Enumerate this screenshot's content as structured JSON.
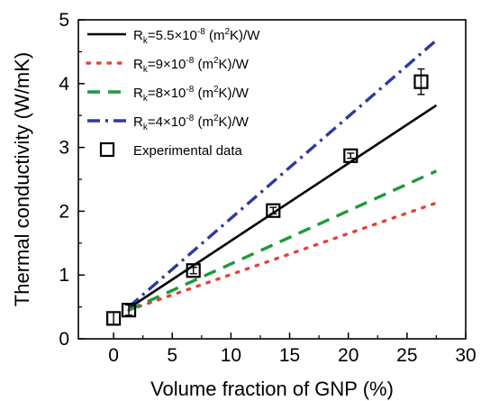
{
  "chart_data": {
    "type": "line",
    "xlabel": "Volume fraction of GNP (%)",
    "ylabel": "Thermal conductivity (W/mK)",
    "xlim": [
      -3,
      30
    ],
    "ylim": [
      0,
      5
    ],
    "x_ticks": [
      0,
      5,
      10,
      15,
      20,
      25,
      30
    ],
    "y_ticks": [
      0,
      1,
      2,
      3,
      4,
      5
    ],
    "grid": false,
    "legend_position": "top-left",
    "series": [
      {
        "name": "Rk=5.5×10-8 (m2K)/W",
        "name_parts": {
          "main": "R",
          "sub": "k",
          "coef": "=5.5×10",
          "exp": "-8",
          "unit_a": " (m",
          "unit_exp": "2",
          "unit_b": "K)/W"
        },
        "style": "solid",
        "color": "#000000",
        "x": [
          1.3,
          27.5
        ],
        "y": [
          0.48,
          3.66
        ]
      },
      {
        "name": "Rk=9×10-8 (m2K)/W",
        "name_parts": {
          "main": "R",
          "sub": "k",
          "coef": "=9×10",
          "exp": "-8",
          "unit_a": " (m",
          "unit_exp": "2",
          "unit_b": "K)/W"
        },
        "style": "dotted",
        "color": "#e8403a",
        "x": [
          1.3,
          27.5
        ],
        "y": [
          0.45,
          2.13
        ]
      },
      {
        "name": "Rk=8×10-8 (m2K)/W",
        "name_parts": {
          "main": "R",
          "sub": "k",
          "coef": "=8×10",
          "exp": "-8",
          "unit_a": " (m",
          "unit_exp": "2",
          "unit_b": "K)/W"
        },
        "style": "dashed",
        "color": "#1c9b3b",
        "x": [
          1.3,
          27.5
        ],
        "y": [
          0.45,
          2.63
        ]
      },
      {
        "name": "Rk=4×10-8 (m2K)/W",
        "name_parts": {
          "main": "R",
          "sub": "k",
          "coef": "=4×10",
          "exp": "-8",
          "unit_a": " (m",
          "unit_exp": "2",
          "unit_b": "K)/W"
        },
        "style": "dashdot",
        "color": "#2e3a9e",
        "x": [
          1.3,
          27.5
        ],
        "y": [
          0.5,
          4.68
        ]
      }
    ],
    "experimental": {
      "name": "Experimental data",
      "marker": "open-square",
      "color": "#000000",
      "points": [
        {
          "x": 0,
          "y": 0.32,
          "err": 0.1
        },
        {
          "x": 1.3,
          "y": 0.45,
          "err": 0.08
        },
        {
          "x": 6.8,
          "y": 1.07,
          "err": 0.05
        },
        {
          "x": 13.6,
          "y": 2.01,
          "err": 0.05
        },
        {
          "x": 20.2,
          "y": 2.87,
          "err": 0.04
        },
        {
          "x": 26.2,
          "y": 4.03,
          "err": 0.2
        }
      ]
    }
  }
}
